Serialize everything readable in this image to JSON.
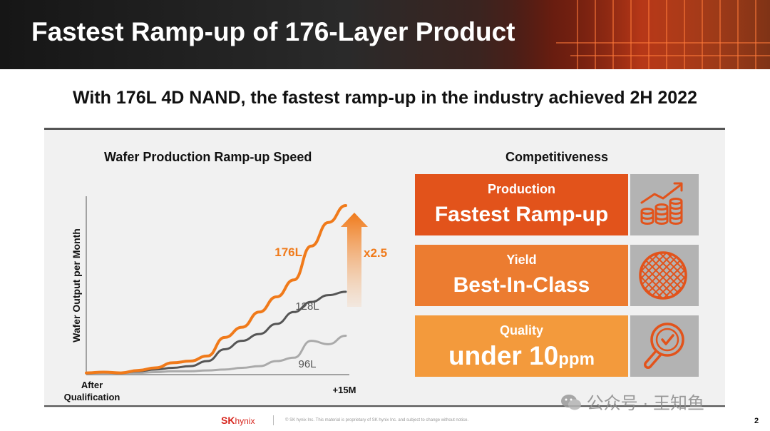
{
  "header": {
    "title": "Fastest Ramp-up of 176-Layer Product"
  },
  "subtitle": "With 176L 4D NAND, the fastest ramp-up in the industry achieved 2H 2022",
  "chart_data": {
    "type": "line",
    "title": "Wafer Production Ramp-up Speed",
    "ylabel": "Wafer Output per Month",
    "xlabel": "",
    "x_tick_labels": [
      "After Qualification",
      "+15M"
    ],
    "x": [
      0,
      1,
      2,
      3,
      4,
      5,
      6,
      7,
      8,
      9,
      10,
      11,
      12,
      13,
      14,
      15
    ],
    "xlim": [
      0,
      15
    ],
    "ylim": [
      0,
      100
    ],
    "series": [
      {
        "name": "176L",
        "color": "#f07a1a",
        "values": [
          1,
          1.5,
          1,
          2.5,
          4,
          7,
          8,
          11,
          22,
          28,
          37,
          46,
          56,
          76,
          90,
          100
        ]
      },
      {
        "name": "128L",
        "color": "#555555",
        "values": [
          1,
          1.5,
          1,
          2,
          3,
          4,
          5,
          8,
          15,
          20,
          24,
          30,
          37,
          43,
          47,
          49
        ]
      },
      {
        "name": "96L",
        "color": "#aaaaaa",
        "values": [
          1,
          1,
          1,
          1,
          1.5,
          2,
          2,
          2.5,
          3,
          4,
          5,
          8,
          10,
          20,
          18,
          23
        ]
      }
    ],
    "annotation": {
      "text": "x2.5",
      "color": "#f07a1a"
    },
    "grid": false,
    "legend": "inline-labels"
  },
  "competitiveness": {
    "title": "Competitiveness",
    "cards": [
      {
        "label": "Production",
        "value": "Fastest Ramp-up",
        "value_suffix": "",
        "color": "#e2531b",
        "icon": "growth-coins-icon"
      },
      {
        "label": "Yield",
        "value": "Best-In-Class",
        "value_suffix": "",
        "color": "#ec7c30",
        "icon": "wafer-icon"
      },
      {
        "label": "Quality",
        "value": "under 10",
        "value_suffix": "ppm",
        "color": "#f39a3c",
        "icon": "magnifier-check-icon"
      }
    ]
  },
  "footer": {
    "logo_sk": "SK",
    "logo_hynix": "hynix",
    "note": "© SK hynix Inc. This material is proprietary of SK hynix Inc. and subject to change without notice.",
    "page": "2"
  },
  "watermark": "公众号 · 王知鱼"
}
